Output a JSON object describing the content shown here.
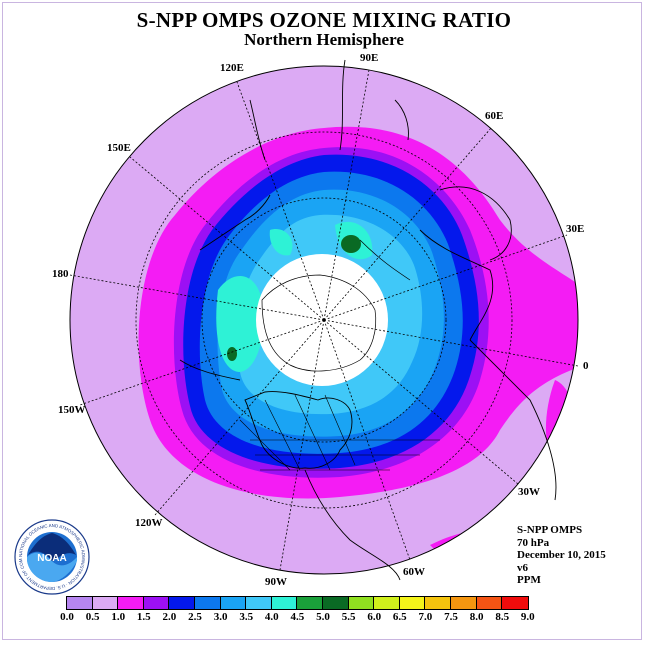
{
  "title": "S-NPP OMPS OZONE MIXING RATIO",
  "subtitle": "Northern Hemisphere",
  "longitude_labels": [
    "90E",
    "60E",
    "30E",
    "0",
    "30W",
    "60W",
    "90W",
    "120W",
    "150W",
    "180",
    "150E",
    "120E"
  ],
  "info": {
    "line1": "S-NPP OMPS",
    "line2": "70 hPa",
    "line3": "December 10, 2015",
    "line4": "v6",
    "line5": "PPM"
  },
  "logo": {
    "text": "NOAA",
    "ring_text": "NATIONAL OCEANIC AND ATMOSPHERIC ADMINISTRATION · U.S. DEPARTMENT OF COMMERCE"
  },
  "colorbar": {
    "ticks": [
      "0.0",
      "0.5",
      "1.0",
      "1.5",
      "2.0",
      "2.5",
      "3.0",
      "3.5",
      "4.0",
      "4.5",
      "5.0",
      "5.5",
      "6.0",
      "6.5",
      "7.0",
      "7.5",
      "8.0",
      "8.5",
      "9.0"
    ],
    "colors": [
      "#b686f0",
      "#dcaaf4",
      "#f41cf4",
      "#9c10f4",
      "#0418ec",
      "#0c78ee",
      "#1aa4f4",
      "#40c8f8",
      "#2ef2d6",
      "#1aa03a",
      "#0a6a24",
      "#90e020",
      "#d0f01c",
      "#f4f41a",
      "#f4c40e",
      "#f49610",
      "#f45414",
      "#f00c0c",
      "#8c4a2e"
    ]
  },
  "colors": {
    "background_disk": "#dcaaf4",
    "no_data_center": "#ffffff"
  }
}
